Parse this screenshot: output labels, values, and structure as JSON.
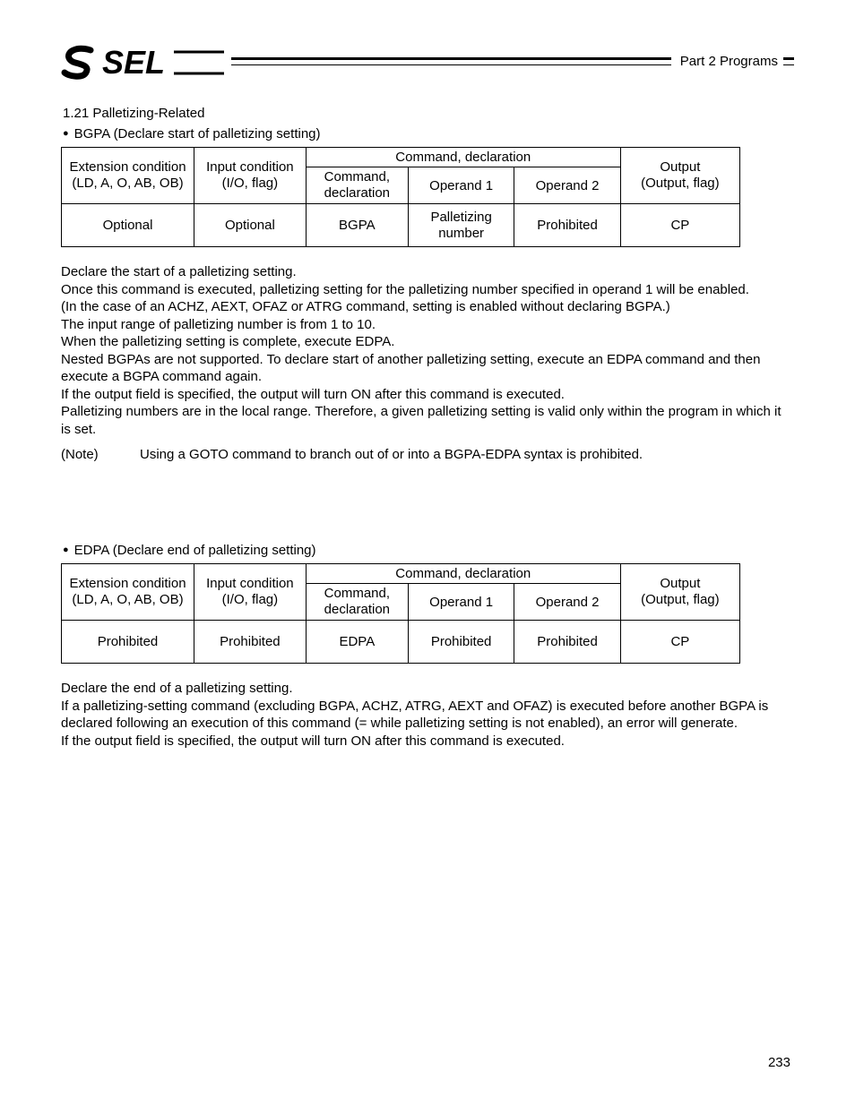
{
  "header": {
    "part_label": "Part 2 Programs"
  },
  "section": {
    "number_title": "1.21  Palletizing-Related"
  },
  "bgpa": {
    "bullet_label": "BGPA (Declare start of palletizing setting)",
    "table": {
      "ext_header_l1": "Extension condition",
      "ext_header_l2": "(LD, A, O, AB, OB)",
      "inp_header_l1": "Input condition",
      "inp_header_l2": "(I/O, flag)",
      "cmd_decl_span": "Command, declaration",
      "cmd_header_l1": "Command,",
      "cmd_header_l2": "declaration",
      "op1_header": "Operand 1",
      "op2_header": "Operand 2",
      "out_header_l1": "Output",
      "out_header_l2": "(Output, flag)",
      "ext": "Optional",
      "inp": "Optional",
      "cmd": "BGPA",
      "op1_l1": "Palletizing",
      "op1_l2": "number",
      "op2": "Prohibited",
      "out": "CP"
    },
    "desc": "Declare the start of a palletizing setting.\nOnce this command is executed, palletizing setting for the palletizing number specified in operand 1 will be enabled.\n(In the case of an ACHZ, AEXT, OFAZ or ATRG command, setting is enabled without declaring BGPA.)\nThe input range of palletizing number is from 1 to 10.\nWhen the palletizing setting is complete, execute EDPA.\nNested BGPAs are not supported. To declare start of another palletizing setting, execute an EDPA command and then execute a BGPA command again.\nIf the output field is specified, the output will turn ON after this command is executed.\nPalletizing numbers are in the local range. Therefore, a given palletizing setting is valid only within the program in which it is set.",
    "note_label": "(Note)",
    "note_text": "Using a GOTO command to branch out of or into a BGPA-EDPA syntax is prohibited."
  },
  "edpa": {
    "bullet_label": "EDPA (Declare end of palletizing setting)",
    "table": {
      "ext_header_l1": "Extension condition",
      "ext_header_l2": "(LD, A, O, AB, OB)",
      "inp_header_l1": "Input condition",
      "inp_header_l2": "(I/O, flag)",
      "cmd_decl_span": "Command, declaration",
      "cmd_header_l1": "Command,",
      "cmd_header_l2": "declaration",
      "op1_header": "Operand 1",
      "op2_header": "Operand 2",
      "out_header_l1": "Output",
      "out_header_l2": "(Output, flag)",
      "ext": "Prohibited",
      "inp": "Prohibited",
      "cmd": "EDPA",
      "op1": "Prohibited",
      "op2": "Prohibited",
      "out": "CP"
    },
    "desc": "Declare the end of a palletizing setting.\nIf a palletizing-setting command (excluding BGPA, ACHZ, ATRG, AEXT and OFAZ) is executed before another BGPA is declared following an execution of this command (= while palletizing setting is not enabled), an error will generate.\nIf the output field is specified, the output will turn ON after this command is executed."
  },
  "page_number": "233"
}
